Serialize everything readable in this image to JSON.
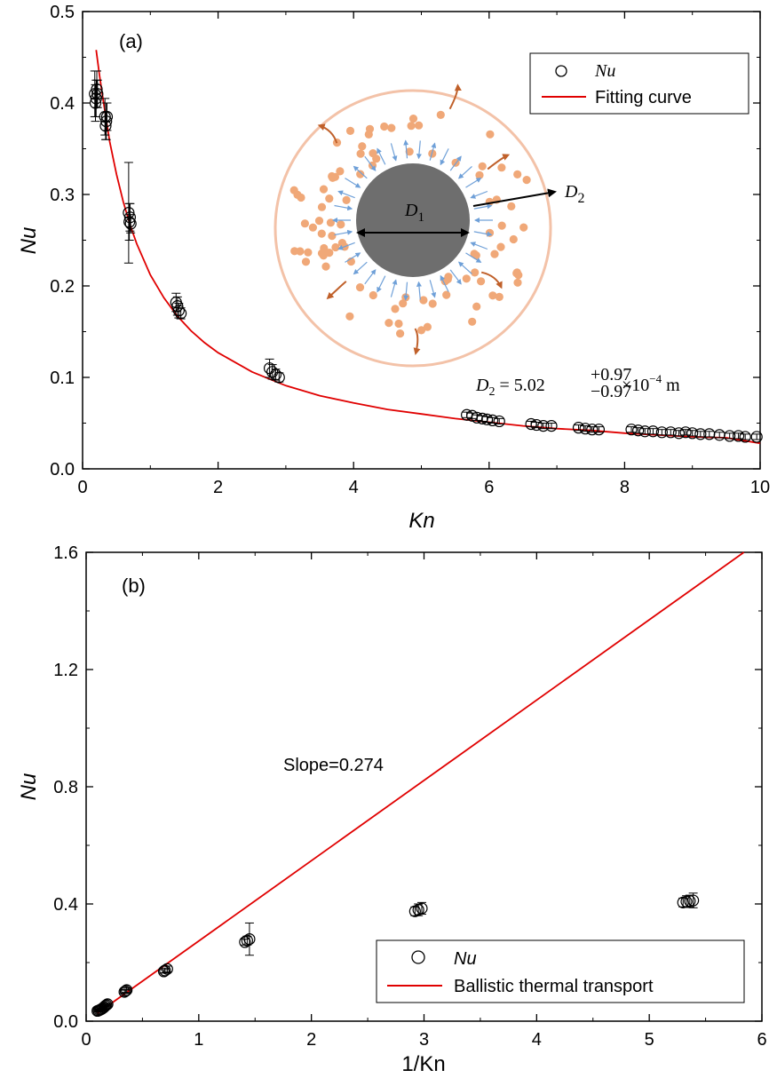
{
  "colors": {
    "fit": "#e00000",
    "marker": "#000000",
    "particle": "#f0a878",
    "core": "#6e6e6e",
    "ring": "#f5c8b0",
    "phonon_arrow": "#6fa0d8",
    "wave": "#c0602a"
  },
  "chart_data": [
    {
      "type": "scatter",
      "panel_label": "(a)",
      "xlabel": "Kn",
      "ylabel": "Nu",
      "xlim": [
        0,
        10
      ],
      "ylim": [
        0,
        0.5
      ],
      "xticks": [
        "0",
        "2",
        "4",
        "6",
        "8",
        "10"
      ],
      "yticks": [
        "0.0",
        "0.1",
        "0.2",
        "0.3",
        "0.4",
        "0.5"
      ],
      "legend": {
        "position": "top-right",
        "entries": [
          "Nu",
          "Fitting curve"
        ]
      },
      "annotation": "D2 = 5.02 (+0.97 / −0.97) × 10^-4 m",
      "annotation_parts": {
        "lhs": "D",
        "sub": "2",
        "eq": " = 5.02",
        "sup": "+0.97",
        "lower": "−0.97",
        "times": " ×10",
        "exp": "−4",
        "unit": "  m"
      },
      "inset_labels": {
        "d1": "D",
        "d1_sub": "1",
        "d2": "D",
        "d2_sub": "2"
      },
      "series": [
        {
          "name": "Nu",
          "marker": "open-circle",
          "points": [
            [
              0.18,
              0.41,
              0.025
            ],
            [
              0.19,
              0.4,
              0.02
            ],
            [
              0.2,
              0.405,
              0.02
            ],
            [
              0.21,
              0.415,
              0.02
            ],
            [
              0.22,
              0.41,
              0.015
            ],
            [
              0.33,
              0.385,
              0.02
            ],
            [
              0.34,
              0.375,
              0.015
            ],
            [
              0.35,
              0.38,
              0.02
            ],
            [
              0.36,
              0.385,
              0.015
            ],
            [
              0.68,
              0.28,
              0.055
            ],
            [
              0.69,
              0.27,
              0.02
            ],
            [
              0.7,
              0.275,
              0.015
            ],
            [
              0.71,
              0.268,
              0.01
            ],
            [
              1.38,
              0.182,
              0.01
            ],
            [
              1.4,
              0.178,
              0.01
            ],
            [
              1.42,
              0.173,
              0.008
            ],
            [
              1.45,
              0.17,
              0.006
            ],
            [
              2.76,
              0.11,
              0.01
            ],
            [
              2.8,
              0.106,
              0.008
            ],
            [
              2.85,
              0.103,
              0.006
            ],
            [
              2.9,
              0.1,
              0.005
            ],
            [
              5.67,
              0.059,
              0.003
            ],
            [
              5.75,
              0.058,
              0.003
            ],
            [
              5.82,
              0.056,
              0.003
            ],
            [
              5.9,
              0.055,
              0.003
            ],
            [
              5.97,
              0.054,
              0.003
            ],
            [
              6.05,
              0.053,
              0.003
            ],
            [
              6.15,
              0.052,
              0.003
            ],
            [
              6.62,
              0.049,
              0.003
            ],
            [
              6.7,
              0.048,
              0.003
            ],
            [
              6.8,
              0.047,
              0.003
            ],
            [
              6.92,
              0.047,
              0.003
            ],
            [
              7.32,
              0.045,
              0.003
            ],
            [
              7.42,
              0.044,
              0.003
            ],
            [
              7.52,
              0.043,
              0.003
            ],
            [
              7.62,
              0.043,
              0.003
            ],
            [
              8.1,
              0.043,
              0.003
            ],
            [
              8.2,
              0.042,
              0.003
            ],
            [
              8.3,
              0.041,
              0.003
            ],
            [
              8.42,
              0.041,
              0.003
            ],
            [
              8.55,
              0.04,
              0.003
            ],
            [
              8.68,
              0.04,
              0.003
            ],
            [
              8.8,
              0.039,
              0.003
            ],
            [
              8.9,
              0.04,
              0.003
            ],
            [
              9.0,
              0.039,
              0.003
            ],
            [
              9.12,
              0.038,
              0.003
            ],
            [
              9.25,
              0.038,
              0.003
            ],
            [
              9.4,
              0.037,
              0.003
            ],
            [
              9.55,
              0.036,
              0.003
            ],
            [
              9.68,
              0.036,
              0.003
            ],
            [
              9.78,
              0.035,
              0.003
            ],
            [
              9.95,
              0.035,
              0.003
            ]
          ]
        },
        {
          "name": "Fitting curve",
          "line": true,
          "x": [
            0.2,
            0.25,
            0.3,
            0.4,
            0.5,
            0.6,
            0.7,
            0.8,
            1.0,
            1.2,
            1.4,
            1.6,
            1.8,
            2.0,
            2.5,
            3.0,
            3.5,
            4.0,
            4.5,
            5.0,
            5.5,
            6.0,
            6.5,
            7.0,
            7.5,
            8.0,
            8.5,
            9.0,
            9.5,
            10.0
          ],
          "y": [
            0.458,
            0.43,
            0.405,
            0.358,
            0.322,
            0.292,
            0.267,
            0.246,
            0.212,
            0.187,
            0.167,
            0.151,
            0.138,
            0.127,
            0.106,
            0.091,
            0.08,
            0.072,
            0.065,
            0.06,
            0.055,
            0.051,
            0.047,
            0.044,
            0.042,
            0.039,
            0.037,
            0.035,
            0.034,
            0.028
          ]
        }
      ]
    },
    {
      "type": "scatter",
      "panel_label": "(b)",
      "xlabel": "1/Kn",
      "ylabel": "Nu",
      "xlim": [
        0,
        6
      ],
      "ylim": [
        0,
        1.6
      ],
      "xticks": [
        "0",
        "1",
        "2",
        "3",
        "4",
        "5",
        "6"
      ],
      "yticks": [
        "0.0",
        "0.4",
        "0.8",
        "1.2",
        "1.6"
      ],
      "legend": {
        "position": "bottom-right",
        "entries": [
          "Nu",
          "Ballistic thermal transport"
        ]
      },
      "annotation": "Slope=0.274",
      "series": [
        {
          "name": "Nu",
          "marker": "open-circle",
          "points": [
            [
              0.1,
              0.035,
              0.003
            ],
            [
              0.11,
              0.036,
              0.003
            ],
            [
              0.12,
              0.038,
              0.003
            ],
            [
              0.13,
              0.04,
              0.003
            ],
            [
              0.14,
              0.042,
              0.003
            ],
            [
              0.15,
              0.045,
              0.003
            ],
            [
              0.16,
              0.048,
              0.003
            ],
            [
              0.17,
              0.052,
              0.003
            ],
            [
              0.18,
              0.055,
              0.003
            ],
            [
              0.19,
              0.058,
              0.003
            ],
            [
              0.34,
              0.1,
              0.006
            ],
            [
              0.35,
              0.103,
              0.006
            ],
            [
              0.36,
              0.106,
              0.008
            ],
            [
              0.69,
              0.17,
              0.006
            ],
            [
              0.7,
              0.173,
              0.008
            ],
            [
              0.72,
              0.178,
              0.01
            ],
            [
              1.41,
              0.27,
              0.01
            ],
            [
              1.43,
              0.275,
              0.015
            ],
            [
              1.45,
              0.28,
              0.055
            ],
            [
              2.92,
              0.375,
              0.015
            ],
            [
              2.95,
              0.38,
              0.02
            ],
            [
              2.98,
              0.385,
              0.02
            ],
            [
              5.3,
              0.405,
              0.015
            ],
            [
              5.33,
              0.408,
              0.02
            ],
            [
              5.36,
              0.41,
              0.02
            ],
            [
              5.39,
              0.412,
              0.025
            ]
          ]
        },
        {
          "name": "Ballistic thermal transport",
          "line": true,
          "x": [
            0.1,
            5.84
          ],
          "y": [
            0.027,
            1.6
          ]
        }
      ]
    }
  ]
}
